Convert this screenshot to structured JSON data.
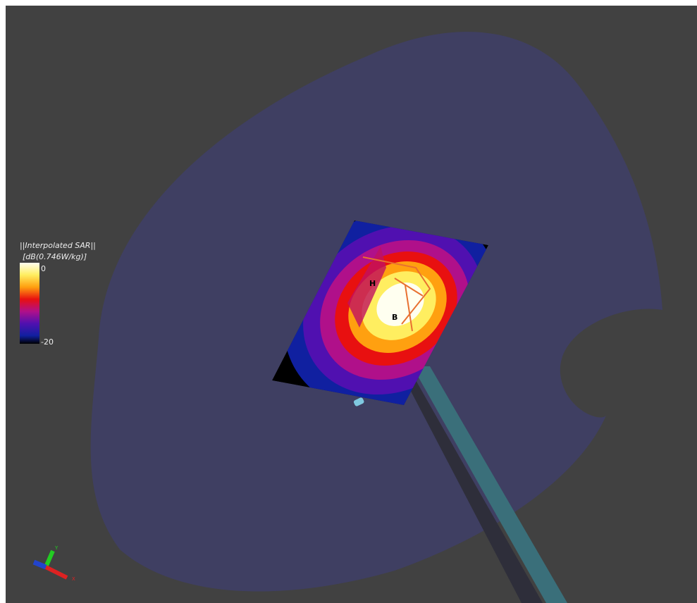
{
  "colorbar": {
    "title": "||Interpolated SAR||",
    "unit": "[dB(0.746W/kg)]",
    "ticks": [
      0,
      -20
    ]
  },
  "markers": [
    "H",
    "B"
  ],
  "axes_triad": [
    "Y",
    "X"
  ]
}
